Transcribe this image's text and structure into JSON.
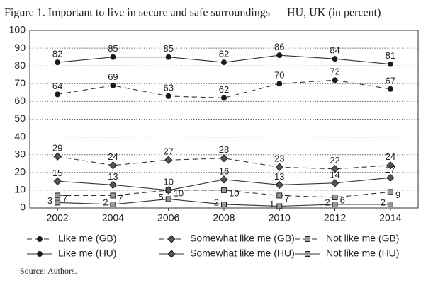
{
  "chart_data": {
    "type": "line",
    "title": "Figure 1. Important to live in secure and safe surroundings — HU, UK (in percent)",
    "source": "Source: Authors.",
    "categories": [
      "2002",
      "2004",
      "2006",
      "2008",
      "2010",
      "2012",
      "2014"
    ],
    "ylim": [
      0,
      100
    ],
    "yticks": [
      0,
      10,
      20,
      30,
      40,
      50,
      60,
      70,
      80,
      90,
      100
    ],
    "grid": true,
    "series": [
      {
        "name": "Like me (GB)",
        "color": "#1a1a1a",
        "line_style": "dashed",
        "marker": "circle",
        "values": [
          64,
          69,
          63,
          62,
          70,
          72,
          67
        ]
      },
      {
        "name": "Somewhat like me (GB)",
        "color": "#555555",
        "line_style": "dashed",
        "marker": "diamond",
        "values": [
          29,
          24,
          27,
          28,
          23,
          22,
          24
        ]
      },
      {
        "name": "Not like me (GB)",
        "color": "#999999",
        "line_style": "dashed",
        "marker": "square",
        "values": [
          7,
          7,
          10,
          10,
          7,
          6,
          9
        ]
      },
      {
        "name": "Like me (HU)",
        "color": "#1a1a1a",
        "line_style": "solid",
        "marker": "circle",
        "values": [
          82,
          85,
          85,
          82,
          86,
          84,
          81
        ]
      },
      {
        "name": "Somewhat like me (HU)",
        "color": "#555555",
        "line_style": "solid",
        "marker": "diamond",
        "values": [
          15,
          13,
          10,
          16,
          13,
          14,
          17
        ]
      },
      {
        "name": "Not like me (HU)",
        "color": "#999999",
        "line_style": "solid",
        "marker": "square",
        "values": [
          3,
          2,
          5,
          2,
          1,
          2,
          2
        ]
      }
    ]
  }
}
